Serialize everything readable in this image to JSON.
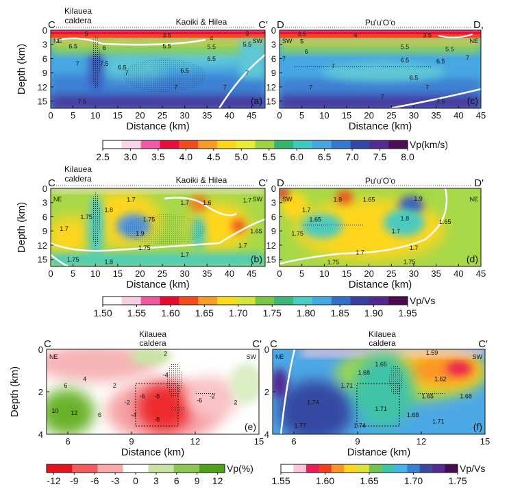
{
  "chart_data": [
    {
      "id": "a",
      "type": "heatmap",
      "panel_label": "(a)",
      "section_start": "C",
      "section_end": "C'",
      "direction_left": "NE",
      "direction_right": "SW",
      "region_labels": [
        "Kilauea",
        "caldera",
        "Kaoiki & Hilea"
      ],
      "xlabel": "Distance (km)",
      "ylabel": "Depth (km)",
      "xlim": [
        0,
        48
      ],
      "ylim": [
        0,
        16.5
      ],
      "xticks": [
        0,
        5,
        10,
        15,
        20,
        25,
        30,
        35,
        40,
        45
      ],
      "yticks": [
        0,
        3,
        6,
        9,
        12,
        15
      ],
      "contour_labels": [
        {
          "text": "3.5",
          "x": 26,
          "y": 1.5
        },
        {
          "text": "3",
          "x": 44,
          "y": 0.8
        },
        {
          "text": "4",
          "x": 36,
          "y": 2.2
        },
        {
          "text": "5",
          "x": 8,
          "y": 1.2
        },
        {
          "text": "5.5",
          "x": 26,
          "y": 3.8
        },
        {
          "text": "5.5",
          "x": 36,
          "y": 4
        },
        {
          "text": "5.5",
          "x": 44,
          "y": 3.5
        },
        {
          "text": "6.5",
          "x": 5,
          "y": 3.8
        },
        {
          "text": "6",
          "x": 12,
          "y": 4.2
        },
        {
          "text": "6.5",
          "x": 36,
          "y": 6.5
        },
        {
          "text": "6.5",
          "x": 30,
          "y": 9
        },
        {
          "text": "6.5",
          "x": 16,
          "y": 8.3
        },
        {
          "text": "7",
          "x": 6,
          "y": 7.5
        },
        {
          "text": "7.5",
          "x": 12,
          "y": 7.5
        },
        {
          "text": "7",
          "x": 17,
          "y": 9.5
        },
        {
          "text": "7",
          "x": 44,
          "y": 9.5
        },
        {
          "text": "7",
          "x": 28,
          "y": 12.5
        },
        {
          "text": "7",
          "x": 39,
          "y": 12.5
        },
        {
          "text": "7.5",
          "x": 7,
          "y": 15.5
        }
      ]
    },
    {
      "id": "c",
      "type": "heatmap",
      "panel_label": "(c)",
      "section_start": "D",
      "section_end": "D,",
      "direction_left": "SW",
      "direction_right": "NE",
      "region_labels": [
        "Pu'u'O'o"
      ],
      "xlabel": "Distance (km)",
      "ylabel": "",
      "xlim": [
        0,
        45
      ],
      "ylim": [
        0,
        16.5
      ],
      "xticks": [
        0,
        5,
        10,
        15,
        20,
        25,
        30,
        35,
        40,
        45
      ],
      "yticks": [
        0,
        3,
        6,
        9,
        12,
        15
      ],
      "contour_labels": [
        {
          "text": "3.5",
          "x": 5,
          "y": 1.2
        },
        {
          "text": "4",
          "x": 17,
          "y": 1.5
        },
        {
          "text": "3.5",
          "x": 33,
          "y": 1.5
        },
        {
          "text": "5",
          "x": 5,
          "y": 2.8
        },
        {
          "text": "5.5",
          "x": 28,
          "y": 4
        },
        {
          "text": "5.5",
          "x": 38,
          "y": 4.5
        },
        {
          "text": "6",
          "x": 6,
          "y": 5
        },
        {
          "text": "6.5",
          "x": 28,
          "y": 6.8
        },
        {
          "text": "6.5",
          "x": 36,
          "y": 7
        },
        {
          "text": "7",
          "x": 42,
          "y": 6.3
        },
        {
          "text": "7",
          "x": 1,
          "y": 6.5
        },
        {
          "text": "7",
          "x": 12,
          "y": 8
        },
        {
          "text": "6.5",
          "x": 30,
          "y": 10.5
        },
        {
          "text": "7",
          "x": 7,
          "y": 12.5
        },
        {
          "text": "7",
          "x": 33,
          "y": 12.5
        },
        {
          "text": "7",
          "x": 23,
          "y": 14.5
        },
        {
          "text": "7.5",
          "x": 36,
          "y": 15.5
        }
      ]
    },
    {
      "id": "b",
      "type": "heatmap",
      "panel_label": "(b)",
      "section_start": "C",
      "section_end": "C'",
      "direction_left": "NE",
      "direction_right": "SW",
      "region_labels": [
        "Kilauea",
        "caldera",
        "Kaoiki & Hilea"
      ],
      "xlabel": "Distance (km)",
      "ylabel": "Depth (km)",
      "xlim": [
        0,
        48
      ],
      "ylim": [
        0,
        16.5
      ],
      "xticks": [
        0,
        5,
        10,
        15,
        20,
        25,
        30,
        35,
        40,
        45
      ],
      "yticks": [
        0,
        3,
        6,
        9,
        12,
        15
      ],
      "contour_labels": [
        {
          "text": "1.7",
          "x": 18,
          "y": 2.8
        },
        {
          "text": "1.7",
          "x": 30,
          "y": 3.5
        },
        {
          "text": "1.6",
          "x": 35,
          "y": 3.5
        },
        {
          "text": "1.7",
          "x": 44,
          "y": 3
        },
        {
          "text": "1.8",
          "x": 13,
          "y": 5
        },
        {
          "text": "1.75",
          "x": 8,
          "y": 6.5
        },
        {
          "text": "1.7",
          "x": 3,
          "y": 9
        },
        {
          "text": "1.75",
          "x": 22,
          "y": 7
        },
        {
          "text": "1.9",
          "x": 20,
          "y": 10
        },
        {
          "text": "1.75",
          "x": 21,
          "y": 13
        },
        {
          "text": "1.7",
          "x": 30,
          "y": 14.5
        },
        {
          "text": "1.7",
          "x": 43,
          "y": 12.5
        },
        {
          "text": "1.65",
          "x": 46,
          "y": 9.5
        },
        {
          "text": "1.75",
          "x": 5,
          "y": 15.5
        },
        {
          "text": "1.8",
          "x": 13,
          "y": 16
        }
      ]
    },
    {
      "id": "d",
      "type": "heatmap",
      "panel_label": "(d)",
      "section_start": "D",
      "section_end": "D'",
      "direction_left": "SW",
      "direction_right": "NE",
      "region_labels": [
        "Pu'u'O'o"
      ],
      "xlabel": "Distance (km)",
      "ylabel": "",
      "xlim": [
        0,
        45
      ],
      "ylim": [
        0,
        16.5
      ],
      "xticks": [
        0,
        5,
        10,
        15,
        20,
        25,
        30,
        35,
        40,
        45
      ],
      "yticks": [
        0,
        3,
        6,
        9,
        12,
        15
      ],
      "contour_labels": [
        {
          "text": "1.9",
          "x": 13,
          "y": 2.8
        },
        {
          "text": "1.65",
          "x": 20,
          "y": 2.8
        },
        {
          "text": "1.9",
          "x": 31,
          "y": 2.6
        },
        {
          "text": "1.7",
          "x": 6,
          "y": 5
        },
        {
          "text": "1.65",
          "x": 8,
          "y": 7
        },
        {
          "text": "1.8",
          "x": 28,
          "y": 6.8
        },
        {
          "text": "1.65",
          "x": 37,
          "y": 7.5
        },
        {
          "text": "1.75",
          "x": 4,
          "y": 10
        },
        {
          "text": "1.7",
          "x": 26,
          "y": 9.5
        },
        {
          "text": "1.7",
          "x": 18,
          "y": 14
        },
        {
          "text": "1.7",
          "x": 30,
          "y": 13
        },
        {
          "text": "1.75",
          "x": 29,
          "y": 16
        },
        {
          "text": "1.75",
          "x": 12,
          "y": 18
        }
      ]
    },
    {
      "id": "e",
      "type": "heatmap",
      "panel_label": "(e)",
      "section_start": "C",
      "section_end": "C'",
      "direction_left": "NE",
      "direction_right": "SW",
      "region_labels": [
        "Kilauea",
        "caldera"
      ],
      "xlabel": "Distance (km)",
      "ylabel": "Depth (km)",
      "xlim": [
        5,
        15
      ],
      "ylim": [
        0,
        4
      ],
      "xticks": [
        6,
        9,
        12,
        15
      ],
      "yticks": [
        0,
        2,
        4
      ],
      "contour_labels": [
        {
          "text": "2",
          "x": 10.6,
          "y": 0.3
        },
        {
          "text": "-4",
          "x": 10.6,
          "y": 1.3
        },
        {
          "text": "4",
          "x": 6.8,
          "y": 1.5
        },
        {
          "text": "6",
          "x": 5.9,
          "y": 1.8
        },
        {
          "text": "2",
          "x": 8.2,
          "y": 1.8
        },
        {
          "text": "-6",
          "x": 9.5,
          "y": 2.3
        },
        {
          "text": "-8",
          "x": 10.2,
          "y": 2.3
        },
        {
          "text": "-2",
          "x": 8.8,
          "y": 2.6
        },
        {
          "text": "-6",
          "x": 12.2,
          "y": 2.5
        },
        {
          "text": "-2",
          "x": 12.8,
          "y": 2.3
        },
        {
          "text": "2",
          "x": 13.9,
          "y": 2.6
        },
        {
          "text": "10",
          "x": 5.4,
          "y": 3.0
        },
        {
          "text": "12",
          "x": 6.3,
          "y": 3.1
        },
        {
          "text": "6",
          "x": 7.5,
          "y": 3.2
        },
        {
          "text": "-4",
          "x": 9.1,
          "y": 3.2
        },
        {
          "text": "-8",
          "x": 10.2,
          "y": 3.4
        }
      ]
    },
    {
      "id": "f",
      "type": "heatmap",
      "panel_label": "(f)",
      "section_start": "C",
      "section_end": "C'",
      "direction_left": "NE",
      "direction_right": "SW",
      "region_labels": [
        "Kilauea",
        "caldera"
      ],
      "xlabel": "Distance (km)",
      "ylabel": "",
      "xlim": [
        5,
        15
      ],
      "ylim": [
        0,
        4
      ],
      "xticks": [
        6,
        9,
        12,
        15
      ],
      "yticks": [
        0,
        2,
        4
      ],
      "contour_labels": [
        {
          "text": "1.59",
          "x": 12.5,
          "y": 0.1
        },
        {
          "text": "1.65",
          "x": 10.1,
          "y": 0.8
        },
        {
          "text": "1.68",
          "x": 9.3,
          "y": 1.2
        },
        {
          "text": "1.62",
          "x": 12.9,
          "y": 1.5
        },
        {
          "text": "1.71",
          "x": 8.5,
          "y": 1.8
        },
        {
          "text": "1.65",
          "x": 12.3,
          "y": 2.3
        },
        {
          "text": "1.68",
          "x": 14.1,
          "y": 2.3
        },
        {
          "text": "1.74",
          "x": 6.9,
          "y": 2.6
        },
        {
          "text": "1.71",
          "x": 10.1,
          "y": 2.9
        },
        {
          "text": "1.68",
          "x": 11.6,
          "y": 3.2
        },
        {
          "text": "1.71",
          "x": 12.8,
          "y": 3.5
        },
        {
          "text": "1.77",
          "x": 6.3,
          "y": 3.7
        },
        {
          "text": "1.74",
          "x": 9.1,
          "y": 3.7
        }
      ]
    }
  ],
  "colorbars": [
    {
      "id": "vp",
      "label": "Vp(km/s)",
      "ticks": [
        "2.5",
        "3.0",
        "3.5",
        "4.0",
        "4.5",
        "5.0",
        "5.5",
        "6.0",
        "6.5",
        "7.0",
        "7.5",
        "8.0"
      ],
      "colors": [
        "#ffffff",
        "#f9d4e6",
        "#f05aa6",
        "#ea0c3c",
        "#f24c1e",
        "#fb9a28",
        "#ffd61a",
        "#e8ec32",
        "#9dd240",
        "#35b56c",
        "#3cc9c2",
        "#48a5e4",
        "#3379cf",
        "#3446a8",
        "#512a92",
        "#4f0c56"
      ]
    },
    {
      "id": "vpvs",
      "label": "Vp/Vs",
      "ticks": [
        "1.50",
        "1.55",
        "1.60",
        "1.65",
        "1.70",
        "1.75",
        "1.80",
        "1.85",
        "1.90",
        "1.95"
      ],
      "colors": [
        "#ffffff",
        "#f9cde3",
        "#f0589f",
        "#e80b30",
        "#f34d1d",
        "#fb9c28",
        "#ffdb1e",
        "#d5e539",
        "#7ac748",
        "#3cb877",
        "#49cdc4",
        "#46a9e7",
        "#3271c9",
        "#3a3e9e",
        "#552890",
        "#4d0850"
      ]
    },
    {
      "id": "dvp",
      "label": "Vp(%)",
      "ticks": [
        "-12",
        "-9",
        "-6",
        "-3",
        "0",
        "3",
        "6",
        "9",
        "12"
      ],
      "colors": [
        "#e8101a",
        "#f25a5d",
        "#f9a8aa",
        "#ffffff",
        "#c9e3a4",
        "#8cc754",
        "#4ca317"
      ]
    },
    {
      "id": "vpvs2",
      "label": "Vp/Vs",
      "ticks": [
        "1.55",
        "1.60",
        "1.65",
        "1.70",
        "1.75"
      ],
      "colors": [
        "#ffffff",
        "#f8c6de",
        "#ea1b55",
        "#f23d1e",
        "#fb9328",
        "#ffd51f",
        "#d7e53a",
        "#6fc34e",
        "#40c3a6",
        "#48b3e8",
        "#3780d3",
        "#3d46a2",
        "#562892",
        "#4b0951"
      ]
    }
  ]
}
